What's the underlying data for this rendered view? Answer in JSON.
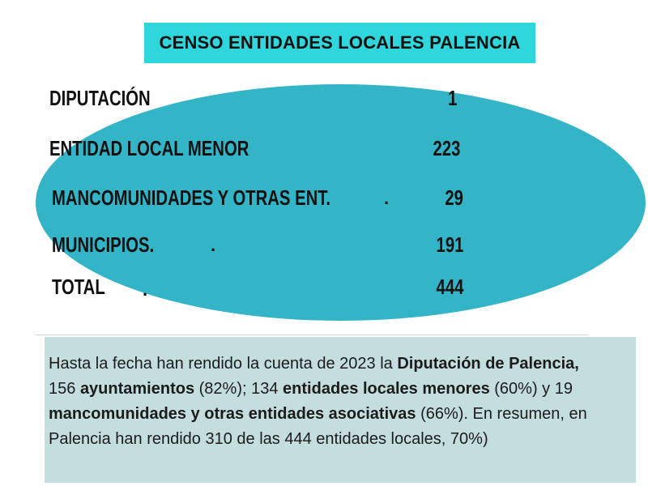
{
  "title": "CENSO ENTIDADES LOCALES PALENCIA",
  "rows": [
    {
      "label": "DIPUTACIÓN",
      "value": "1"
    },
    {
      "label": "ENTIDAD LOCAL MENOR",
      "value": "223"
    },
    {
      "label": "MANCOMUNIDADES Y OTRAS ENT.",
      "value": "29",
      "dot": "."
    },
    {
      "label": "MUNICIPIOS.",
      "value": "191",
      "dot": "."
    },
    {
      "label": "TOTAL",
      "value": "444",
      "dot": "."
    }
  ],
  "summary": {
    "s1": "Hasta la fecha han rendido la cuenta de 2023 la ",
    "b1": "Diputación de Palencia,",
    "s2": " 156 ",
    "b2": "ayuntamientos",
    "s3": " (82%); 134 ",
    "b3": "entidades locales menores",
    "s4": " (60%)  y 19 ",
    "b4": "mancomunidades y otras entidades asociativas",
    "s5": " (66%). En resumen, en Palencia han rendido 310 de las 444 entidades locales, 70%)"
  },
  "colors": {
    "banner": "#2fd6dc",
    "ellipse": "#33b5c7",
    "summary_bg": "#c4dedf"
  }
}
